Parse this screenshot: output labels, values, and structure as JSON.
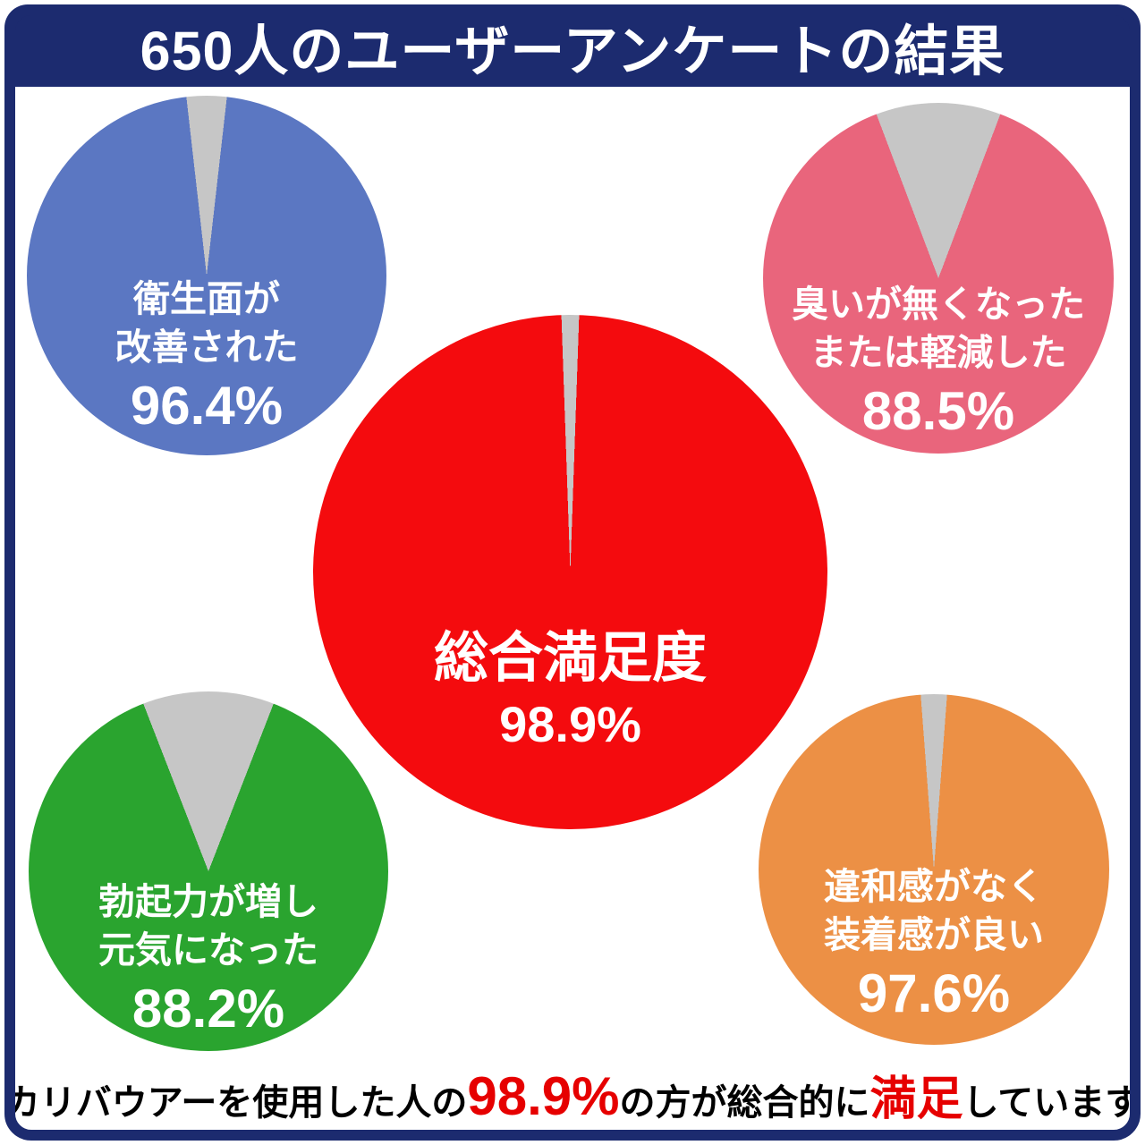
{
  "title": "650人のユーザーアンケートの結果",
  "colors": {
    "frame": "#1c2b6f",
    "remainder": "#c6c6c6",
    "text_light": "#ffffff",
    "highlight": "#e60000"
  },
  "charts": [
    {
      "name": "hygiene",
      "lines": [
        "衛生面が",
        "改善された"
      ],
      "percent": 96.4,
      "percent_label": "96.4%",
      "color": "#5b77c2"
    },
    {
      "name": "odor",
      "lines": [
        "臭いが無くなった",
        "または軽減した"
      ],
      "percent": 88.5,
      "percent_label": "88.5%",
      "color": "#e9657c"
    },
    {
      "name": "overall",
      "lines": [
        "総合満足度"
      ],
      "percent": 98.9,
      "percent_label": "98.9%",
      "color": "#f40b0e"
    },
    {
      "name": "vitality",
      "lines": [
        "勃起力が増し",
        "元気になった"
      ],
      "percent": 88.2,
      "percent_label": "88.2%",
      "color": "#2aa42f"
    },
    {
      "name": "fit",
      "lines": [
        "違和感がなく",
        "装着感が良い"
      ],
      "percent": 97.6,
      "percent_label": "97.6%",
      "color": "#ec9045"
    }
  ],
  "chart_data": [
    {
      "type": "pie",
      "title": "総合満足度",
      "values": [
        98.9,
        1.1
      ],
      "colors": [
        "#f40b0e",
        "#c6c6c6"
      ],
      "legend_position": "none"
    },
    {
      "type": "pie",
      "title": "衛生面が改善された",
      "values": [
        96.4,
        3.6
      ],
      "colors": [
        "#5b77c2",
        "#c6c6c6"
      ],
      "legend_position": "none"
    },
    {
      "type": "pie",
      "title": "臭いが無くなったまたは軽減した",
      "values": [
        88.5,
        11.5
      ],
      "colors": [
        "#e9657c",
        "#c6c6c6"
      ],
      "legend_position": "none"
    },
    {
      "type": "pie",
      "title": "勃起力が増し元気になった",
      "values": [
        88.2,
        11.8
      ],
      "colors": [
        "#2aa42f",
        "#c6c6c6"
      ],
      "legend_position": "none"
    },
    {
      "type": "pie",
      "title": "違和感がなく装着感が良い",
      "values": [
        97.6,
        2.4
      ],
      "colors": [
        "#ec9045",
        "#c6c6c6"
      ],
      "legend_position": "none"
    }
  ],
  "footer": {
    "segments": [
      {
        "text": "カリバウアーを使用した人の"
      },
      {
        "text": "98.9%"
      },
      {
        "text": "の方が総合的に"
      },
      {
        "text": "満足"
      },
      {
        "text": "しています"
      }
    ]
  }
}
